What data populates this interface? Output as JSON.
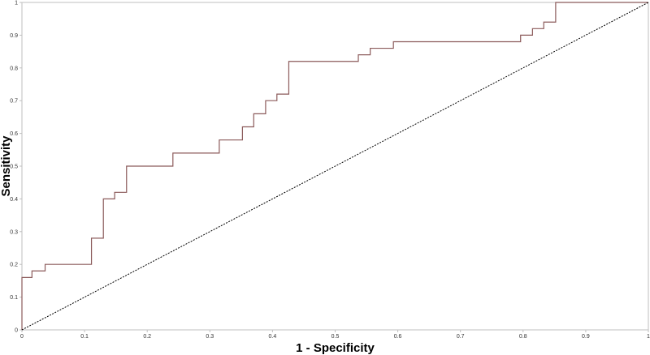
{
  "chart_data": {
    "type": "line",
    "title": "",
    "xlabel": "1 - Specificity",
    "ylabel": "Sensitivity",
    "xlim": [
      0,
      1
    ],
    "ylim": [
      0,
      1
    ],
    "grid": false,
    "x_ticks": [
      0,
      0.1,
      0.2,
      0.3,
      0.4,
      0.5,
      0.6,
      0.7,
      0.8,
      0.9,
      1
    ],
    "y_ticks": [
      0,
      0.1,
      0.2,
      0.3,
      0.4,
      0.5,
      0.6,
      0.7,
      0.8,
      0.9,
      1
    ],
    "x_tick_labels": [
      "0",
      "0.1",
      "0.2",
      "0.3",
      "0.4",
      "0.5",
      "0.6",
      "0.7",
      "0.8",
      "0.9",
      "1"
    ],
    "y_tick_labels": [
      "0",
      "0.1",
      "0.2",
      "0.3",
      "0.4",
      "0.5",
      "0.6",
      "0.7",
      "0.8",
      "0.9",
      "1"
    ],
    "series": [
      {
        "style": "step",
        "color": "#8b5a5a",
        "x": [
          0,
          0,
          0.016,
          0.016,
          0.037,
          0.037,
          0.111,
          0.111,
          0.13,
          0.13,
          0.148,
          0.148,
          0.167,
          0.167,
          0.241,
          0.241,
          0.315,
          0.315,
          0.352,
          0.352,
          0.37,
          0.37,
          0.389,
          0.389,
          0.407,
          0.407,
          0.426,
          0.426,
          0.537,
          0.537,
          0.556,
          0.556,
          0.593,
          0.593,
          0.796,
          0.796,
          0.815,
          0.815,
          0.833,
          0.833,
          0.852,
          0.852,
          1
        ],
        "y": [
          0,
          0.16,
          0.16,
          0.18,
          0.18,
          0.2,
          0.2,
          0.28,
          0.28,
          0.4,
          0.4,
          0.42,
          0.42,
          0.5,
          0.5,
          0.54,
          0.54,
          0.58,
          0.58,
          0.62,
          0.62,
          0.66,
          0.66,
          0.7,
          0.7,
          0.72,
          0.72,
          0.82,
          0.82,
          0.84,
          0.84,
          0.86,
          0.86,
          0.88,
          0.88,
          0.9,
          0.9,
          0.92,
          0.92,
          0.94,
          0.94,
          1,
          1
        ]
      },
      {
        "style": "dashed",
        "color": "#000000",
        "x": [
          0,
          1
        ],
        "y": [
          0,
          1
        ]
      }
    ]
  }
}
